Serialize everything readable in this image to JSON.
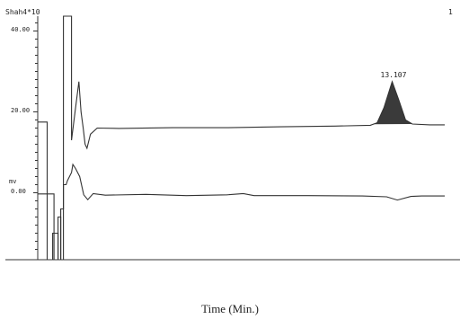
{
  "chart_data": {
    "type": "line",
    "title": "Shah4*10",
    "corner_label": "1",
    "y_unit": "mv",
    "xlabel": "Time (Min.)",
    "ylabel": "",
    "y_ticks": [
      "40.00",
      "20.00",
      "0.00"
    ],
    "y_tick_values": [
      40,
      20,
      0
    ],
    "ylim": [
      -14,
      43
    ],
    "xlim": [
      0,
      15.05
    ],
    "grid": false,
    "peak_annotation": {
      "label": "13.107",
      "x": 13.107,
      "y": 27
    },
    "series": [
      {
        "points": [
          [
            0,
            17.5
          ],
          [
            0.35,
            17.5
          ],
          [
            0.35,
            -26
          ],
          [
            0.55,
            -26
          ],
          [
            0.55,
            -10
          ],
          [
            0.75,
            -10
          ],
          [
            0.75,
            -26
          ],
          [
            0.85,
            -26
          ],
          [
            0.85,
            -4
          ],
          [
            0.95,
            -4
          ],
          [
            0.95,
            45
          ],
          [
            1.25,
            45
          ],
          [
            1.25,
            13
          ],
          [
            1.4,
            21
          ],
          [
            1.52,
            27.5
          ],
          [
            1.6,
            20
          ],
          [
            1.68,
            16
          ],
          [
            1.75,
            12
          ],
          [
            1.82,
            11
          ],
          [
            1.95,
            14.5
          ],
          [
            2.2,
            16
          ],
          [
            3,
            15.9
          ],
          [
            5,
            16.1
          ],
          [
            7,
            16.1
          ],
          [
            9,
            16.3
          ],
          [
            11,
            16.5
          ],
          [
            12.3,
            16.7
          ],
          [
            12.55,
            17.3
          ],
          [
            12.8,
            21
          ],
          [
            13.107,
            27.5
          ],
          [
            13.35,
            23
          ],
          [
            13.6,
            18
          ],
          [
            13.85,
            17
          ],
          [
            14.5,
            16.8
          ],
          [
            15.05,
            16.8
          ]
        ],
        "shaded_peak": [
          12.4,
          13.85
        ]
      },
      {
        "points": [
          [
            0,
            -0.3
          ],
          [
            0.6,
            -0.3
          ],
          [
            0.6,
            -26
          ],
          [
            0.75,
            -26
          ],
          [
            0.75,
            -6
          ],
          [
            0.85,
            -6
          ],
          [
            0.85,
            -26
          ],
          [
            0.95,
            -26
          ],
          [
            0.95,
            2
          ],
          [
            1.05,
            2
          ],
          [
            1.1,
            3
          ],
          [
            1.25,
            5
          ],
          [
            1.3,
            7
          ],
          [
            1.4,
            6
          ],
          [
            1.55,
            4
          ],
          [
            1.7,
            -0.5
          ],
          [
            1.85,
            -1.7
          ],
          [
            2.05,
            -0.2
          ],
          [
            2.5,
            -0.6
          ],
          [
            4,
            -0.4
          ],
          [
            5.5,
            -0.7
          ],
          [
            7,
            -0.5
          ],
          [
            7.6,
            -0.2
          ],
          [
            8,
            -0.7
          ],
          [
            10,
            -0.7
          ],
          [
            12,
            -0.8
          ],
          [
            12.9,
            -1
          ],
          [
            13.3,
            -1.8
          ],
          [
            13.8,
            -0.9
          ],
          [
            14.2,
            -0.8
          ],
          [
            15.05,
            -0.8
          ]
        ]
      }
    ]
  }
}
